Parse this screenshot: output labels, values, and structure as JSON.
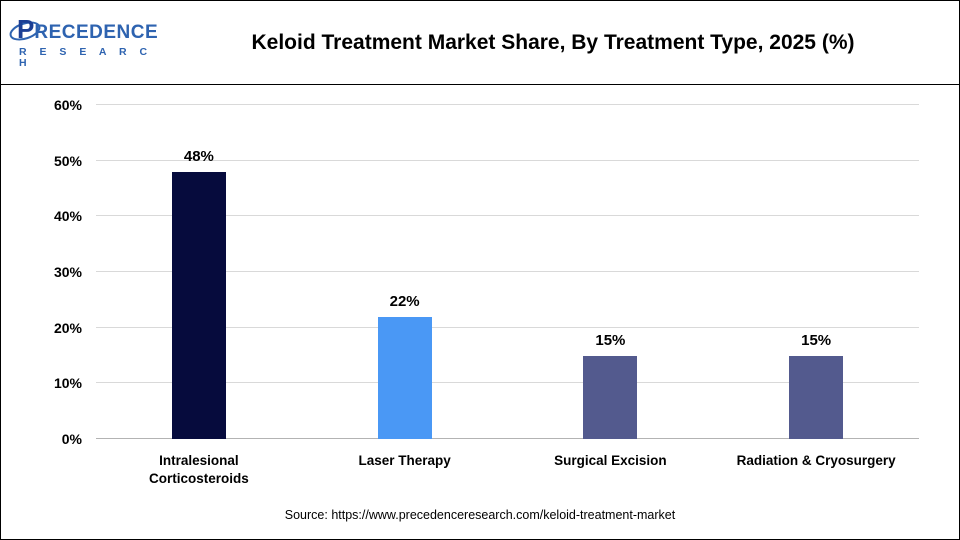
{
  "header": {
    "logo": {
      "p": "P",
      "word": "RECEDENCE",
      "sub": "R E S E A R C H"
    },
    "title": "Keloid Treatment Market Share, By Treatment Type, 2025 (%)"
  },
  "chart_data": {
    "type": "bar",
    "title": "Keloid Treatment Market Share, By Treatment Type, 2025 (%)",
    "categories": [
      "Intralesional\nCorticosteroids",
      "Laser Therapy",
      "Surgical Excision",
      "Radiation & Cryosurgery"
    ],
    "values": [
      48,
      22,
      15,
      15
    ],
    "value_labels": [
      "48%",
      "22%",
      "15%",
      "15%"
    ],
    "bar_colors": [
      "#060b3d",
      "#4a98f5",
      "#535a8e",
      "#535a8e"
    ],
    "xlabel": "",
    "ylabel": "",
    "ylim": [
      0,
      60
    ],
    "ytick_values": [
      0,
      10,
      20,
      30,
      40,
      50,
      60
    ],
    "ytick_suffix": "%",
    "grid": true,
    "legend": false
  },
  "footer": {
    "source": "Source: https://www.precedenceresearch.com/keloid-treatment-market"
  }
}
